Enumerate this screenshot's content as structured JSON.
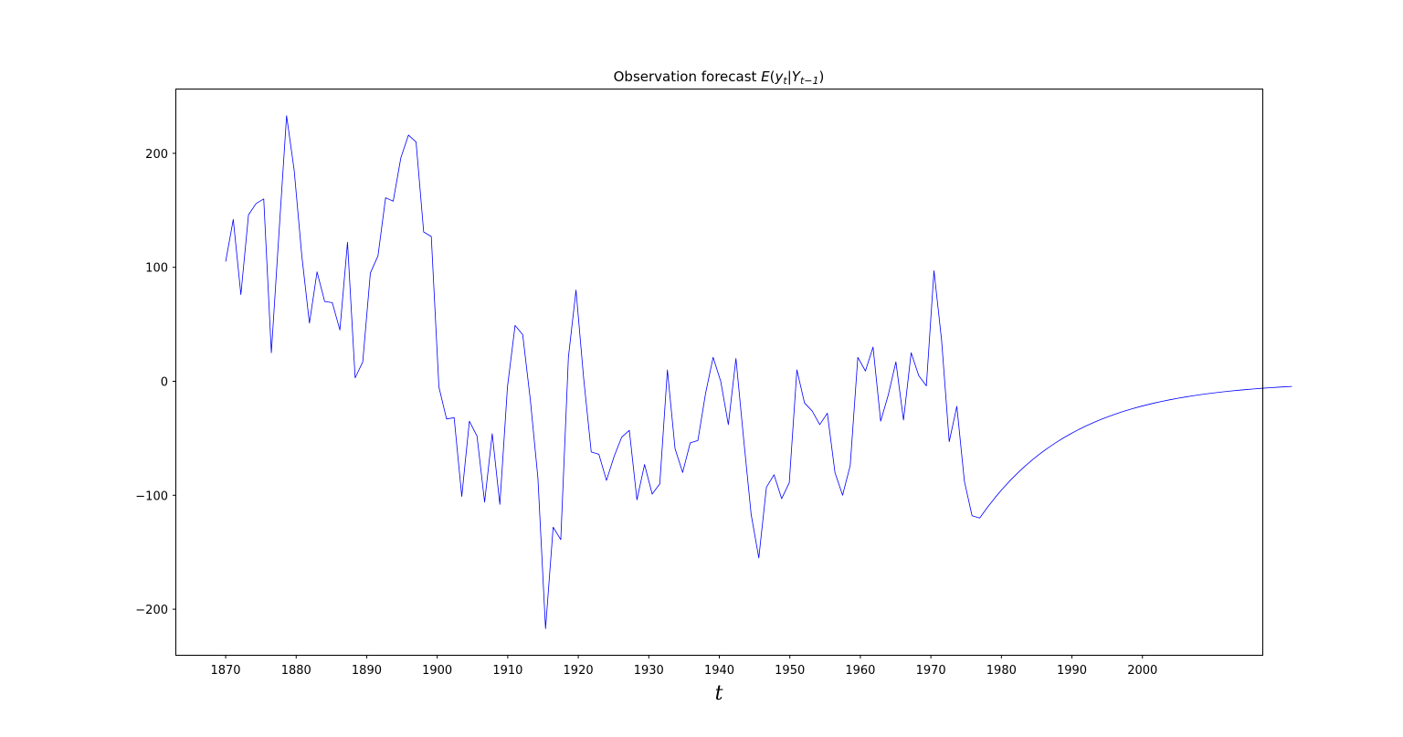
{
  "chart_data": {
    "type": "line",
    "title": {
      "prefix": "Observation forecast ",
      "E": "E",
      "open": "(",
      "y": "y",
      "y_sub": "t",
      "bar": "|",
      "Y": "Y",
      "Y_sub": "t−1",
      "close": ")"
    },
    "xlabel": "t",
    "ylabel": "",
    "xlim": [
      1863,
      2017
    ],
    "ylim": [
      -240,
      256
    ],
    "xticks": [
      1870,
      1880,
      1890,
      1900,
      1910,
      1920,
      1930,
      1940,
      1950,
      1960,
      1970,
      1980,
      1990,
      2000
    ],
    "yticks": [
      -200,
      -100,
      0,
      100,
      200
    ],
    "ytick_labels": [
      "−200",
      "−100",
      "0",
      "100",
      "200"
    ],
    "grid": false,
    "series": [
      {
        "color": "#0000ff",
        "x_start": 1870,
        "x_step": 1.08,
        "observed_values": [
          105,
          142,
          76,
          146,
          156,
          160,
          25,
          130,
          233,
          185,
          110,
          51,
          96,
          70,
          69,
          45,
          122,
          3,
          17,
          95,
          110,
          161,
          158,
          196,
          216,
          210,
          131,
          127,
          -5,
          -33,
          -32,
          -101,
          -35,
          -48,
          -106,
          -46,
          -108,
          -5,
          49,
          41,
          -16,
          -85,
          -217,
          -128,
          -139,
          21,
          80,
          3,
          -62,
          -64,
          -87,
          -66,
          -49,
          -43,
          -104,
          -73,
          -99,
          -90,
          10,
          -59,
          -80,
          -54,
          -52,
          -11,
          21,
          0,
          -38,
          20,
          -50,
          -117,
          -155,
          -93,
          -82,
          -103,
          -89,
          10,
          -19,
          -26,
          -38,
          -28,
          -80,
          -100,
          -74,
          21,
          9,
          30,
          -35,
          -12,
          17,
          -34,
          25,
          5,
          -4,
          97,
          36,
          -53,
          -22,
          -88,
          -118,
          -120
        ],
        "decay_ratio": 0.923,
        "forecast_steps": 41
      }
    ]
  }
}
